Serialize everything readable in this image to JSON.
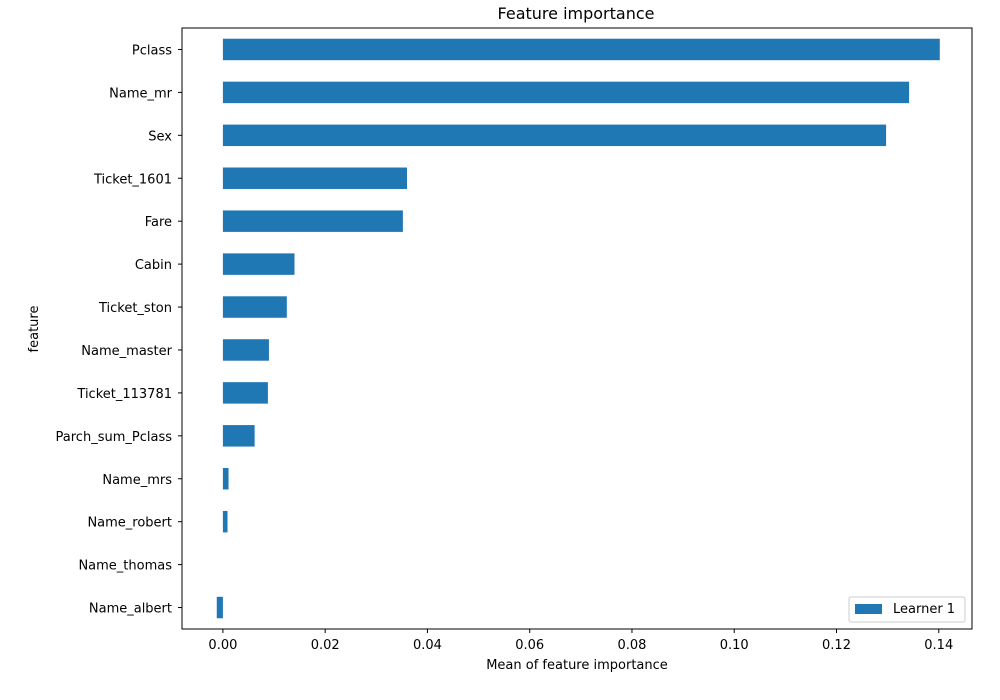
{
  "chart_data": {
    "type": "bar",
    "orientation": "horizontal",
    "title": "Feature importance",
    "xlabel": "Mean of feature importance",
    "ylabel": "feature",
    "xlim": [
      -0.008,
      0.1465
    ],
    "x_ticks": [
      0.0,
      0.02,
      0.04,
      0.06,
      0.08,
      0.1,
      0.12,
      0.14
    ],
    "x_tick_labels": [
      "0.00",
      "0.02",
      "0.04",
      "0.06",
      "0.08",
      "0.10",
      "0.12",
      "0.14"
    ],
    "grid": false,
    "legend_position": "lower-right",
    "categories": [
      "Pclass",
      "Name_mr",
      "Sex",
      "Ticket_1601",
      "Fare",
      "Cabin",
      "Ticket_ston",
      "Name_master",
      "Ticket_113781",
      "Parch_sum_Pclass",
      "Name_mrs",
      "Name_robert",
      "Name_thomas",
      "Name_albert"
    ],
    "series": [
      {
        "name": "Learner 1",
        "color": "#1f77b4",
        "values": [
          0.1402,
          0.1342,
          0.1297,
          0.036,
          0.0352,
          0.014,
          0.0125,
          0.009,
          0.0088,
          0.0062,
          0.0011,
          0.0009,
          0.0,
          -0.0012
        ]
      }
    ]
  }
}
